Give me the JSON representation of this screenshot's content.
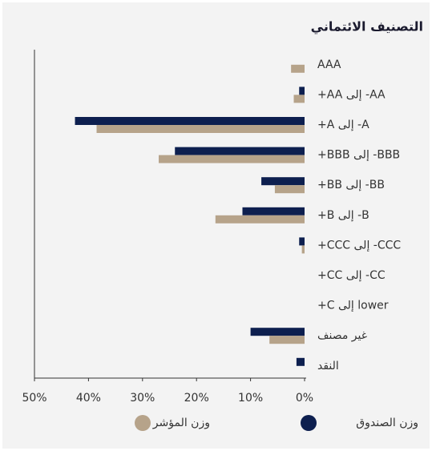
{
  "chart_data": {
    "type": "hbar",
    "title": "التصنيف الائتماني",
    "categories": [
      "AAA",
      "AA- إلى AA+",
      "A- إلى A+",
      "BBB- إلى BBB+",
      "BB- إلى BB+",
      "B- إلى B+",
      "CCC- إلى CCC+",
      "CC- إلى CC+",
      "lower إلى C+",
      "غير مصنف",
      "النقد"
    ],
    "series": [
      {
        "name": "وزن الصندوق",
        "color": "#0d1f4f",
        "values": [
          0,
          1,
          42.5,
          24,
          8,
          11.5,
          1,
          0,
          0,
          10,
          1.5
        ]
      },
      {
        "name": "وزن المؤشر",
        "color": "#b6a38a",
        "values": [
          2.5,
          2,
          38.5,
          27,
          5.5,
          16.5,
          0.5,
          0,
          0,
          6.5,
          0
        ]
      }
    ],
    "xlim": [
      0,
      50
    ],
    "x_reversed": true,
    "xticks": [
      {
        "value": 0,
        "label": "0%"
      },
      {
        "value": 10,
        "label": "10%"
      },
      {
        "value": 20,
        "label": "20%"
      },
      {
        "value": 30,
        "label": "30%"
      },
      {
        "value": 40,
        "label": "40%"
      },
      {
        "value": 50,
        "label": "50%"
      }
    ]
  }
}
